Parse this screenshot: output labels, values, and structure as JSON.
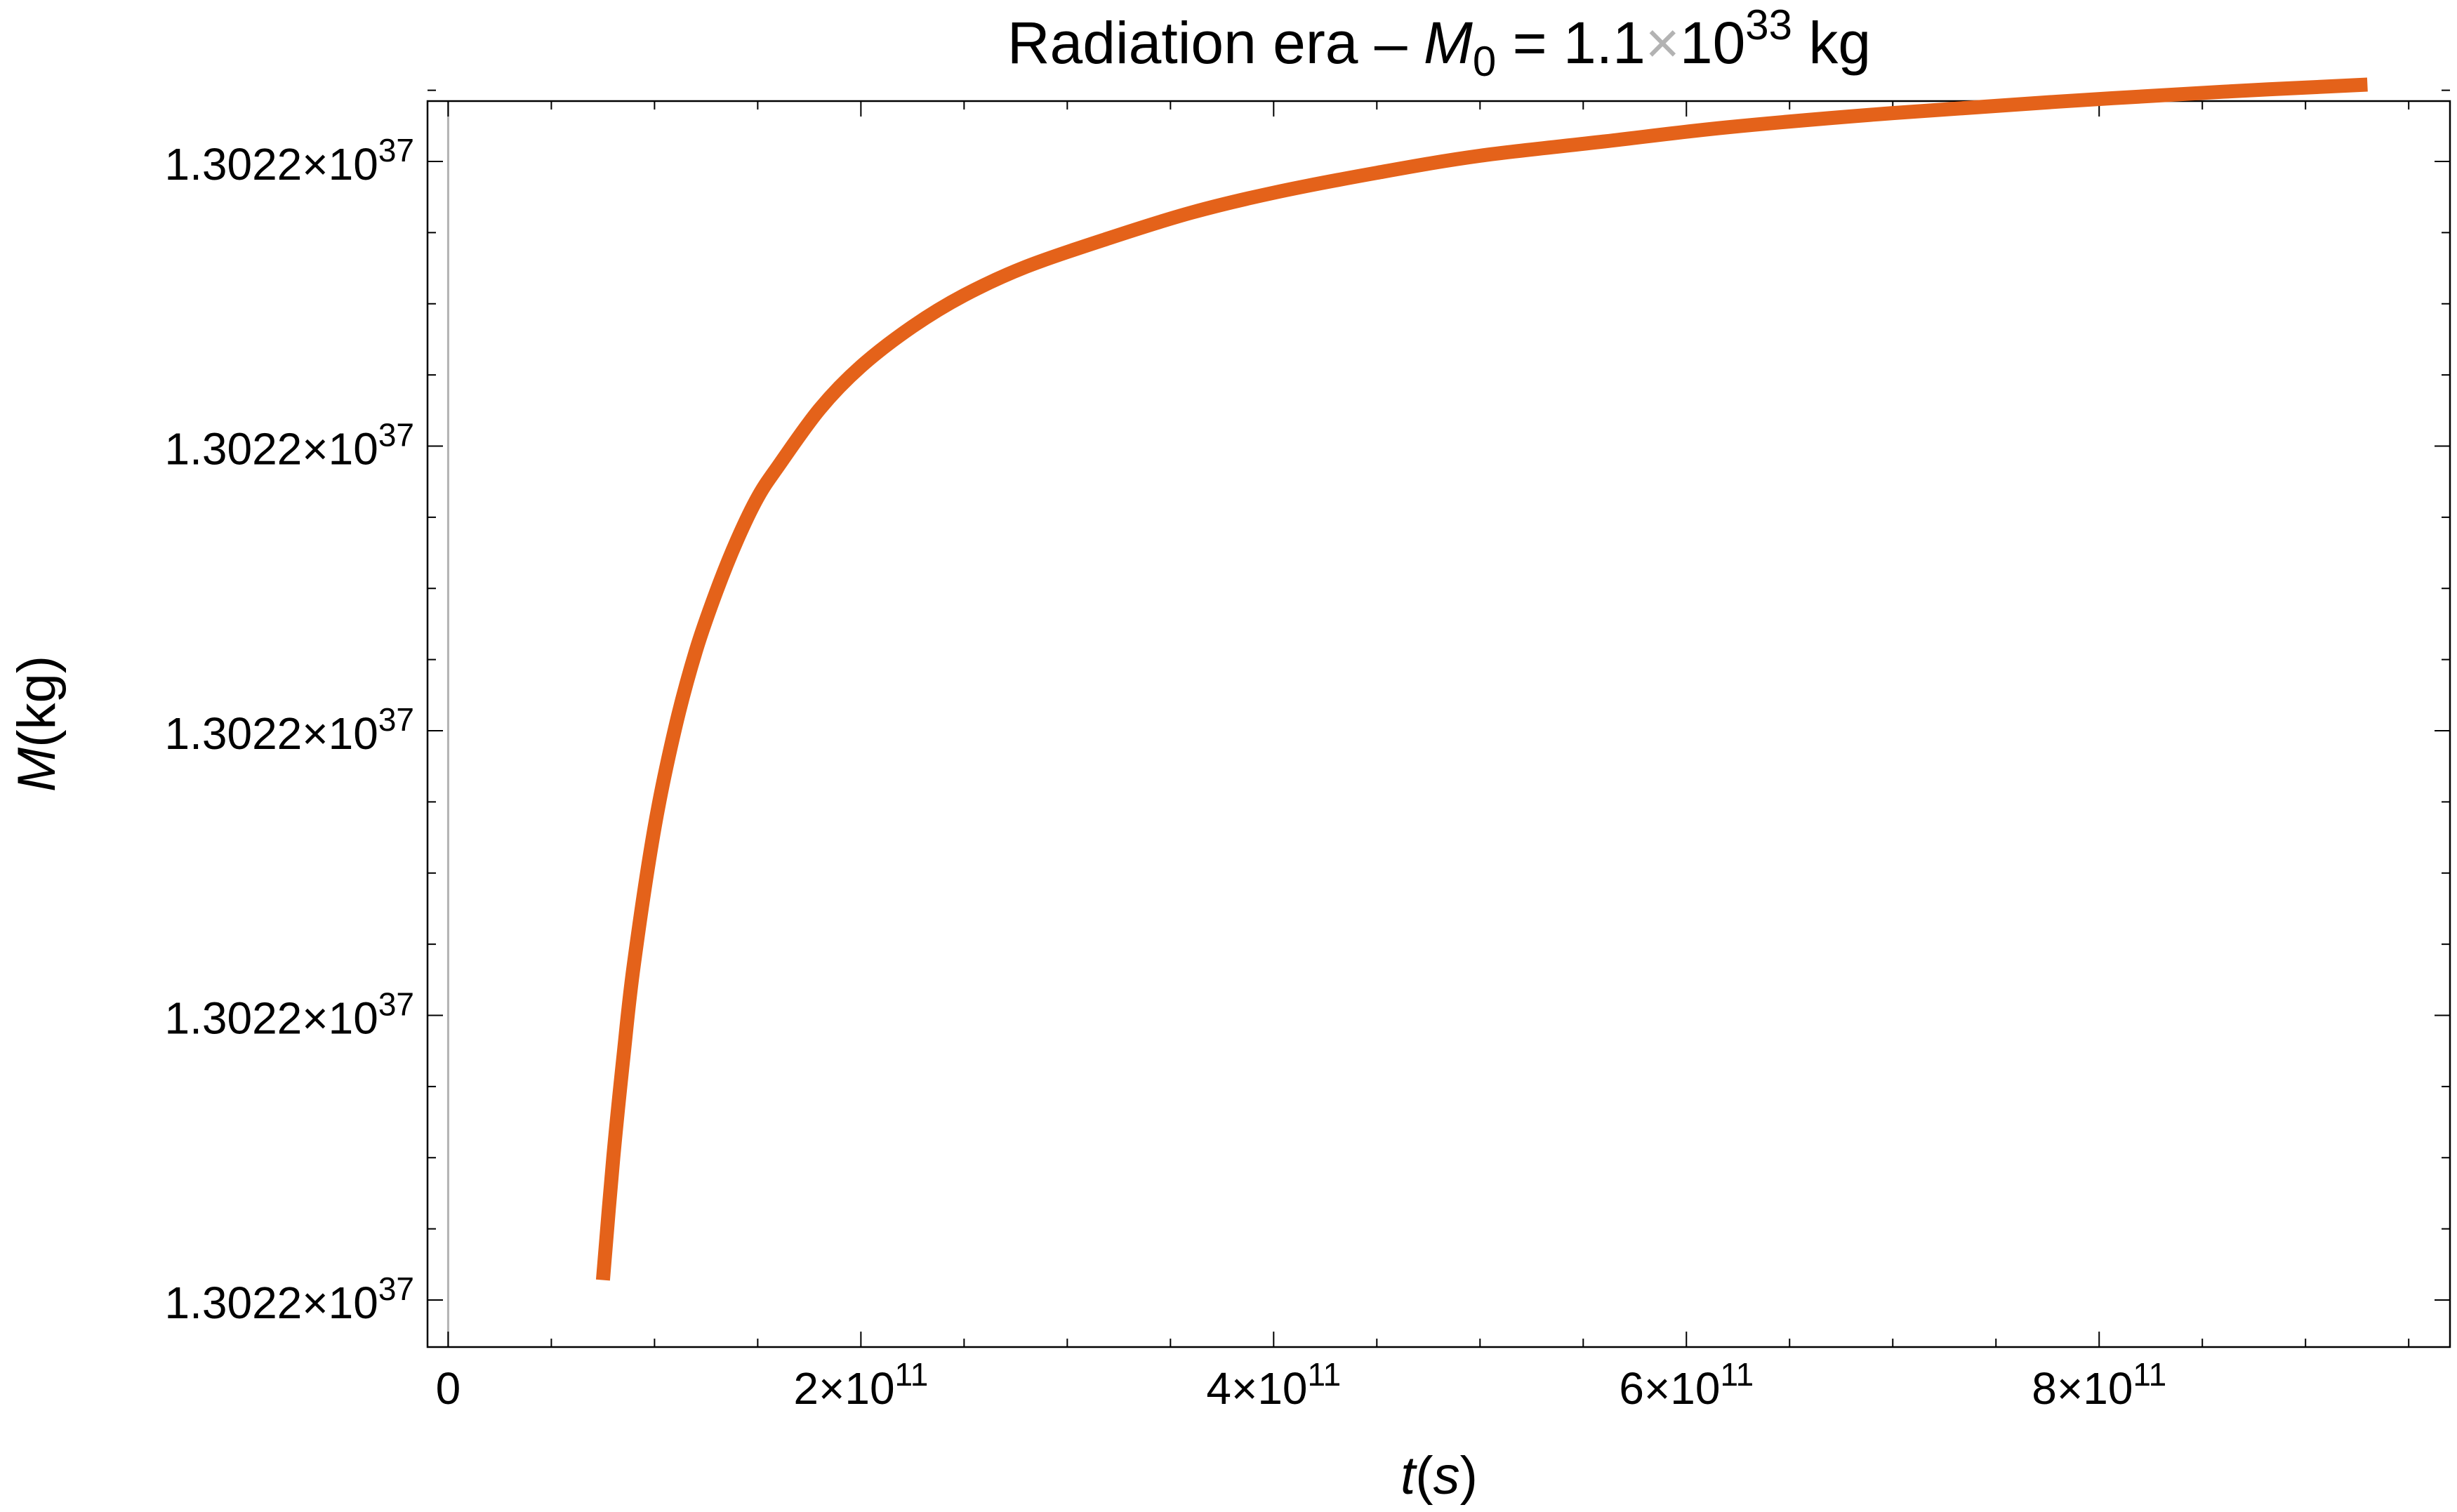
{
  "chart_data": {
    "type": "line",
    "title": {
      "prefix": "Radiation era – ",
      "m_symbol": "M",
      "m_subscript": "0",
      "value_text": " = 1.1",
      "times": "×",
      "base": "10",
      "exponent": "33",
      "unit": " kg"
    },
    "xlabel": {
      "var": "t",
      "open": "(",
      "unit": "s",
      "close": ")"
    },
    "ylabel": {
      "var": "M",
      "rest": "(kg)"
    },
    "xlim": [
      -10000000000.0,
      970000000000.0
    ],
    "ylim": [
      0,
      4.3
    ],
    "x_ticks": [
      {
        "value": 0,
        "mantissa": "0",
        "times": "",
        "base": "",
        "exponent": ""
      },
      {
        "value": 200000000000.0,
        "mantissa": "2",
        "times": "×",
        "base": "10",
        "exponent": "11"
      },
      {
        "value": 400000000000.0,
        "mantissa": "4",
        "times": "×",
        "base": "10",
        "exponent": "11"
      },
      {
        "value": 600000000000.0,
        "mantissa": "6",
        "times": "×",
        "base": "10",
        "exponent": "11"
      },
      {
        "value": 800000000000.0,
        "mantissa": "8",
        "times": "×",
        "base": "10",
        "exponent": "11"
      }
    ],
    "y_ticks": [
      {
        "value": 4,
        "mantissa": "1.3022",
        "times": "×",
        "base": "10",
        "exponent": "37"
      },
      {
        "value": 3,
        "mantissa": "1.3022",
        "times": "×",
        "base": "10",
        "exponent": "37"
      },
      {
        "value": 2,
        "mantissa": "1.3022",
        "times": "×",
        "base": "10",
        "exponent": "37"
      },
      {
        "value": 1,
        "mantissa": "1.3022",
        "times": "×",
        "base": "10",
        "exponent": "37"
      },
      {
        "value": 0,
        "mantissa": "1.3022",
        "times": "×",
        "base": "10",
        "exponent": "37"
      }
    ],
    "x_minor_ticks": [
      50000000000.0,
      100000000000.0,
      150000000000.0,
      250000000000.0,
      300000000000.0,
      350000000000.0,
      450000000000.0,
      500000000000.0,
      550000000000.0,
      650000000000.0,
      700000000000.0,
      750000000000.0,
      850000000000.0,
      900000000000.0,
      950000000000.0
    ],
    "y_minor_ticks": [
      0.25,
      0.5,
      0.75,
      1.25,
      1.5,
      1.75,
      2.25,
      2.5,
      2.75,
      3.25,
      3.5,
      3.75,
      4.25
    ],
    "grid": false,
    "series": [
      {
        "color": "#e4621a",
        "points": [
          [
            75000000000.0,
            0.07
          ],
          [
            80000000000.0,
            0.5
          ],
          [
            85000000000.0,
            0.86
          ],
          [
            90000000000.0,
            1.18
          ],
          [
            100000000000.0,
            1.66
          ],
          [
            110000000000.0,
            2.01
          ],
          [
            120000000000.0,
            2.28
          ],
          [
            130000000000.0,
            2.49
          ],
          [
            140000000000.0,
            2.67
          ],
          [
            150000000000.0,
            2.82
          ],
          [
            160000000000.0,
            2.93
          ],
          [
            180000000000.0,
            3.13
          ],
          [
            200000000000.0,
            3.28
          ],
          [
            225000000000.0,
            3.42
          ],
          [
            250000000000.0,
            3.53
          ],
          [
            280000000000.0,
            3.63
          ],
          [
            320000000000.0,
            3.73
          ],
          [
            360000000000.0,
            3.82
          ],
          [
            400000000000.0,
            3.89
          ],
          [
            450000000000.0,
            3.96
          ],
          [
            500000000000.0,
            4.02
          ],
          [
            560000000000.0,
            4.07
          ],
          [
            620000000000.0,
            4.12
          ],
          [
            700000000000.0,
            4.17
          ],
          [
            780000000000.0,
            4.21
          ],
          [
            860000000000.0,
            4.245
          ],
          [
            930000000000.0,
            4.27
          ]
        ]
      }
    ],
    "zero_line_color": "#b3b3b3",
    "times_color_in_title": "#b3b3b3"
  }
}
